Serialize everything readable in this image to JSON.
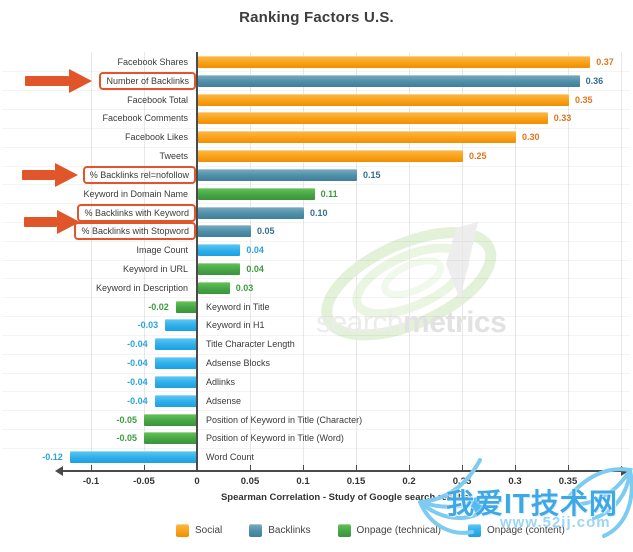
{
  "title": "Ranking Factors U.S.",
  "chart_data": {
    "type": "bar",
    "orientation": "horizontal",
    "title": "Ranking Factors U.S.",
    "xlabel": "Spearman Correlation - Study of Google search results",
    "xlim": [
      -0.14,
      0.41
    ],
    "grid": "vertical",
    "legend_position": "bottom",
    "categories": [
      "Facebook Shares",
      "Number of Backlinks",
      "Facebook Total",
      "Facebook Comments",
      "Facebook Likes",
      "Tweets",
      "% Backlinks rel=nofollow",
      "Keyword in Domain Name",
      "% Backlinks with Keyword",
      "% Backlinks with Stopword",
      "Image Count",
      "Keyword in URL",
      "Keyword in Description",
      "Keyword in Title",
      "Keyword in H1",
      "Title Character Length",
      "Adsense Blocks",
      "Adlinks",
      "Adsense",
      "Position of Keyword in Title (Character)",
      "Position of Keyword in Title (Word)",
      "Word Count"
    ],
    "values": [
      0.37,
      0.36,
      0.35,
      0.33,
      0.3,
      0.25,
      0.15,
      0.11,
      0.1,
      0.05,
      0.04,
      0.04,
      0.03,
      -0.02,
      -0.03,
      -0.04,
      -0.04,
      -0.04,
      -0.04,
      -0.05,
      -0.05,
      -0.12
    ],
    "groups": [
      "social",
      "backlinks",
      "social",
      "social",
      "social",
      "social",
      "backlinks",
      "onpage_technical",
      "backlinks",
      "backlinks",
      "onpage_content",
      "onpage_technical",
      "onpage_technical",
      "onpage_technical",
      "onpage_content",
      "onpage_content",
      "onpage_content",
      "onpage_content",
      "onpage_content",
      "onpage_technical",
      "onpage_technical",
      "onpage_content"
    ],
    "x_ticks": [
      -0.1,
      -0.05,
      0,
      0.05,
      0.1,
      0.15,
      0.2,
      0.25,
      0.3,
      0.35
    ],
    "x_tick_labels": [
      "-0.1",
      "-0.05",
      "0",
      "0.05",
      "0.1",
      "0.15",
      "0.2",
      "0.25",
      "0.3",
      "0.35"
    ],
    "grid_ticks": [
      -0.1,
      -0.05,
      0.05,
      0.1,
      0.15,
      0.2,
      0.25,
      0.3,
      0.35,
      0.4
    ],
    "highlighted_rows": [
      1,
      6,
      8,
      9
    ],
    "arrow_rows_y_centers": [
      81,
      175,
      221.5
    ]
  },
  "groups_def": {
    "social": {
      "label": "Social",
      "text_color": "#e2741c"
    },
    "backlinks": {
      "label": "Backlinks",
      "text_color": "#346f8d"
    },
    "onpage_technical": {
      "label": "Onpage (technical)",
      "text_color": "#3c9c3c"
    },
    "onpage_content": {
      "label": "Onpage (content)",
      "text_color": "#29a4de"
    }
  },
  "legend_order": [
    "social",
    "backlinks",
    "onpage_technical",
    "onpage_content"
  ],
  "annotation_color": "#e0562a",
  "watermarks": {
    "center_light": "search",
    "center_bold": "metrics",
    "bottom_right_text": "我爱IT技术网",
    "bottom_right_url": "www.52ij.com"
  }
}
